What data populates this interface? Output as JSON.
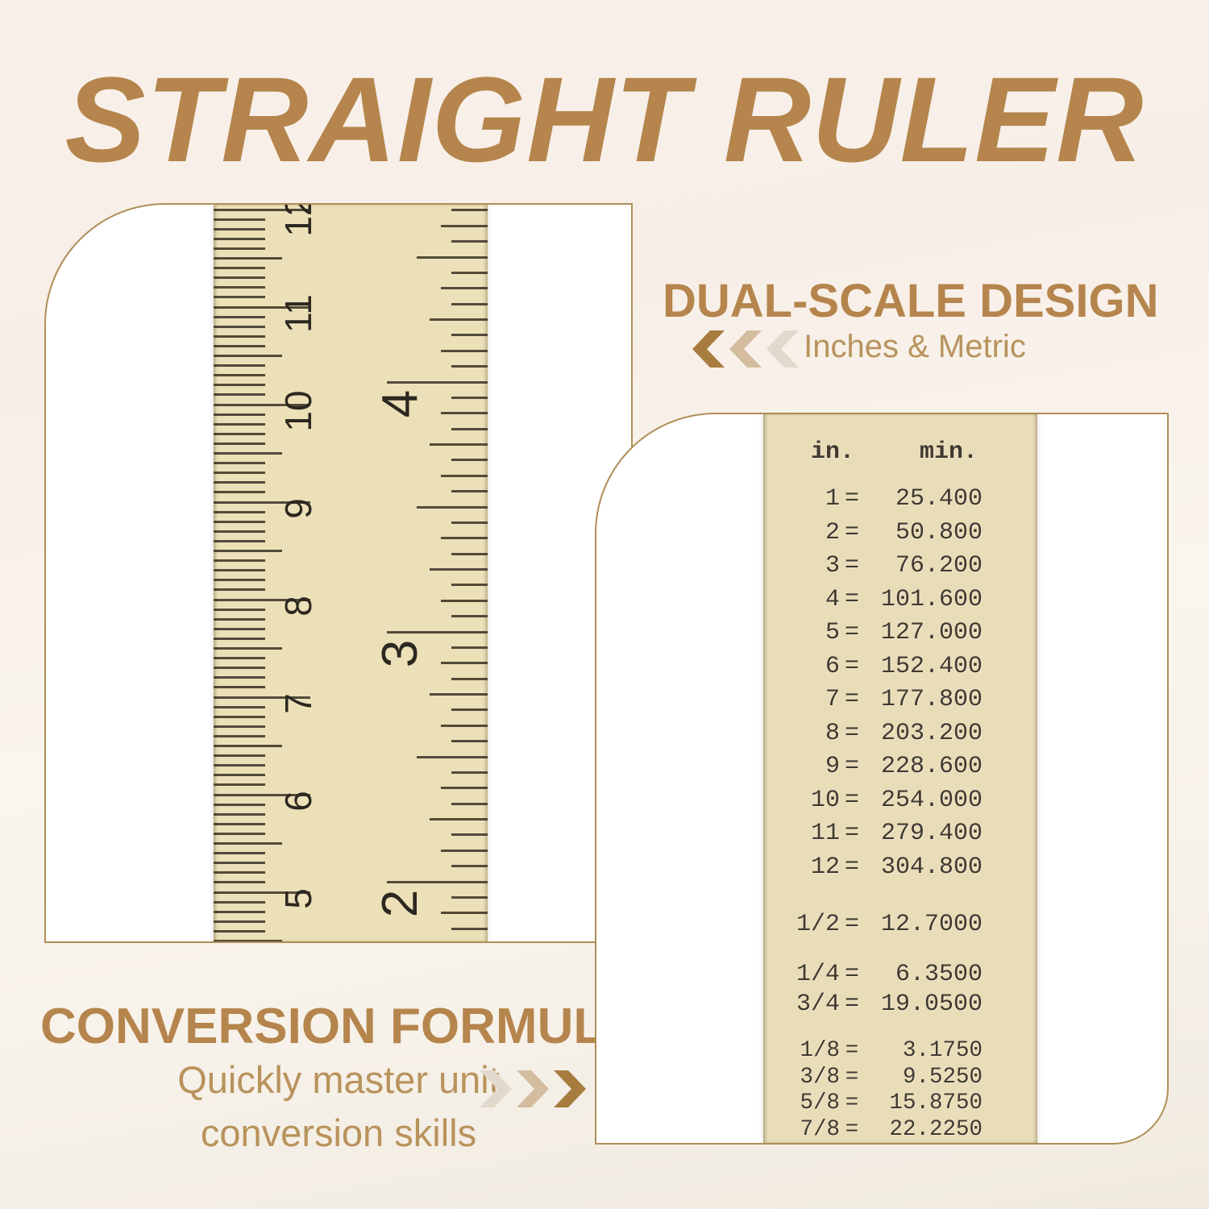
{
  "page_title": "STRAIGHT RULER",
  "colors": {
    "accent": "#b5854d",
    "accent_light": "#b8935c",
    "panel_border": "#b08e58",
    "ruler_face": "#ece0b8",
    "ruler_back_face": "#e9ddb9",
    "tick": "#3e3627",
    "engraved_text": "#3f3930",
    "chevron_dark": "#a87c3f",
    "chevron_mid": "#d3bd9e",
    "chevron_light": "#e2d9cc"
  },
  "dual_scale": {
    "heading": "DUAL-SCALE DESIGN",
    "subheading": "Inches & Metric"
  },
  "conversion_formula": {
    "heading": "CONVERSION FORMULA",
    "line1": "Quickly master unit",
    "line2": "conversion skills"
  },
  "ruler_front": {
    "metric_labels": [
      "12",
      "11",
      "10",
      "9",
      "8",
      "7",
      "6",
      "5"
    ],
    "inch_labels": [
      "4",
      "3",
      "2"
    ]
  },
  "conversion_table": {
    "header": {
      "in": "in.",
      "mm": "min."
    },
    "whole_inches": [
      [
        "1",
        "25.400"
      ],
      [
        "2",
        "50.800"
      ],
      [
        "3",
        "76.200"
      ],
      [
        "4",
        "101.600"
      ],
      [
        "5",
        "127.000"
      ],
      [
        "6",
        "152.400"
      ],
      [
        "7",
        "177.800"
      ],
      [
        "8",
        "203.200"
      ],
      [
        "9",
        "228.600"
      ],
      [
        "10",
        "254.000"
      ],
      [
        "11",
        "279.400"
      ],
      [
        "12",
        "304.800"
      ]
    ],
    "halves": [
      [
        "1/2",
        "12.7000"
      ]
    ],
    "quarters": [
      [
        "1/4",
        "6.3500"
      ],
      [
        "3/4",
        "19.0500"
      ]
    ],
    "eighths": [
      [
        "1/8",
        "3.1750"
      ],
      [
        "3/8",
        "9.5250"
      ],
      [
        "5/8",
        "15.8750"
      ],
      [
        "7/8",
        "22.2250"
      ]
    ]
  }
}
